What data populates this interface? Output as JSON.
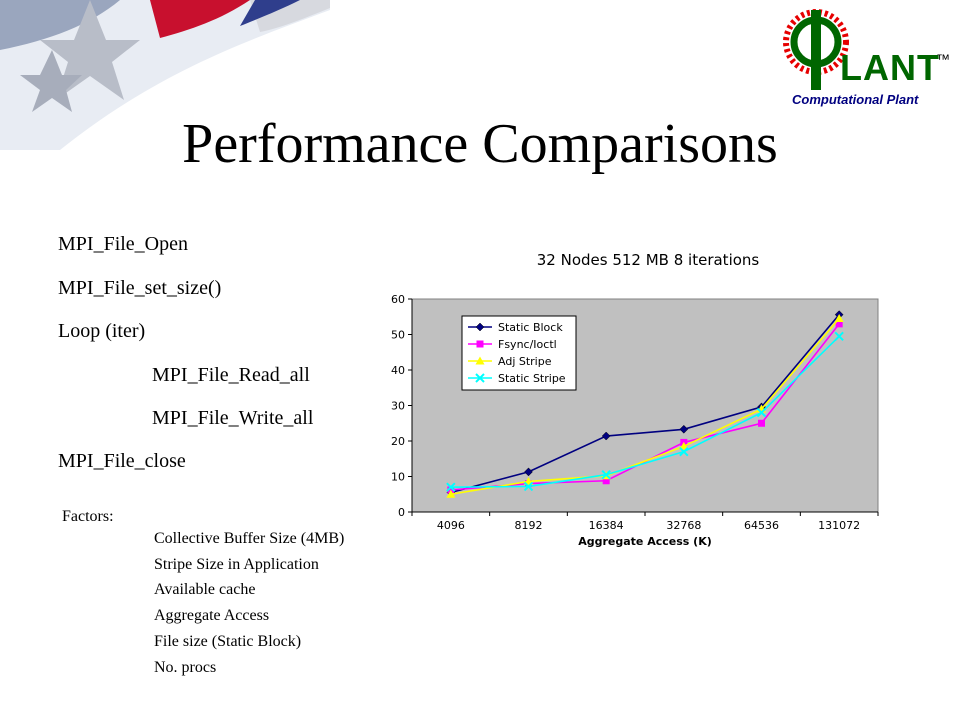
{
  "slide": {
    "title": "Performance Comparisons",
    "logo_text": "Computational Plant",
    "logo_mark": "™"
  },
  "code_lines": [
    "MPI_File_Open",
    "MPI_File_set_size()",
    "Loop (iter)",
    "MPI_File_Read_all",
    "MPI_File_Write_all",
    "MPI_File_close"
  ],
  "factors": {
    "label": "Factors:",
    "items": [
      "Collective Buffer Size (4MB)",
      "Stripe Size in Application",
      "Available cache",
      "Aggregate Access",
      "File size (Static Block)",
      "No. procs"
    ]
  },
  "colors": {
    "plot_background": "#c0c0c0",
    "logo_red": "#e60000",
    "logo_green": "#006600",
    "logo_blue": "#000080"
  },
  "chart_data": {
    "type": "line",
    "title": "32 Nodes 512 MB 8 iterations",
    "xlabel": "Aggregate Access (K)",
    "ylabel": "",
    "categories": [
      "4096",
      "8192",
      "16384",
      "32768",
      "64536",
      "131072"
    ],
    "ylim": [
      0,
      60
    ],
    "yticks": [
      0,
      10,
      20,
      30,
      40,
      50,
      60
    ],
    "grid": false,
    "legend_position": "top-left inside plot",
    "series": [
      {
        "name": "Static Block",
        "color": "#000080",
        "marker": "diamond",
        "values": [
          5.5,
          11.3,
          21.4,
          23.3,
          29.6,
          55.6
        ]
      },
      {
        "name": "Fsync/Ioctl",
        "color": "#ff00ff",
        "marker": "square",
        "values": [
          6.2,
          8.0,
          8.8,
          19.6,
          25.0,
          53.0
        ]
      },
      {
        "name": "Adj Stripe",
        "color": "#ffff00",
        "marker": "triangle",
        "values": [
          5.0,
          8.6,
          10.2,
          18.5,
          29.0,
          54.5
        ]
      },
      {
        "name": "Static Stripe",
        "color": "#00ffff",
        "marker": "x",
        "values": [
          7.0,
          7.2,
          10.5,
          17.0,
          28.0,
          49.5
        ]
      }
    ]
  }
}
